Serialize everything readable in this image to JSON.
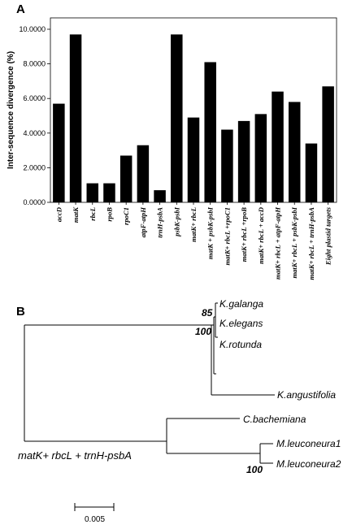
{
  "panel_a_label": "A",
  "panel_b_label": "B",
  "chart_data": [
    {
      "type": "bar",
      "ylabel": "Inter-sequence divergence (%)",
      "ylim": [
        0,
        10
      ],
      "yticks": [
        0,
        2,
        4,
        6,
        8,
        10
      ],
      "ytick_labels": [
        "0.0000",
        "2.0000",
        "4.0000",
        "6.0000",
        "8.0000",
        "10.0000"
      ],
      "categories": [
        "accD",
        "matK",
        "rbcL",
        "rpoB",
        "rpoC1",
        "atpF-atpH",
        "trnH-psbA",
        "psbK-psbI",
        "matK+ rbcL",
        "matK + psbK-psbI",
        "matK+ rbcL +rpoC1",
        "matK+ rbcL +rpoB",
        "matK+ rbcL + accD",
        "matK+ rbcL + atpF-atpH",
        "matK+ rbcL + psbK-psbI",
        "matK+ rbcL + trnH-psbA",
        "Eight plastid targets"
      ],
      "values": [
        5.7,
        9.7,
        1.1,
        1.1,
        2.7,
        3.3,
        0.7,
        9.7,
        4.9,
        8.1,
        4.2,
        4.7,
        5.1,
        6.4,
        5.8,
        3.4,
        6.7
      ],
      "grid": false,
      "bar_color": "#000000"
    },
    {
      "type": "tree",
      "taxa": [
        "K.galanga",
        "K.elegans",
        "K.rotunda",
        "K.angustifolia",
        "C.bachemiana",
        "M.leuconeura1",
        "M.leuconeura2"
      ],
      "bootstrap": [
        "85",
        "100",
        "100"
      ],
      "marker_label": "matK+ rbcL + trnH-psbA",
      "scale_bar": "0.005"
    }
  ]
}
